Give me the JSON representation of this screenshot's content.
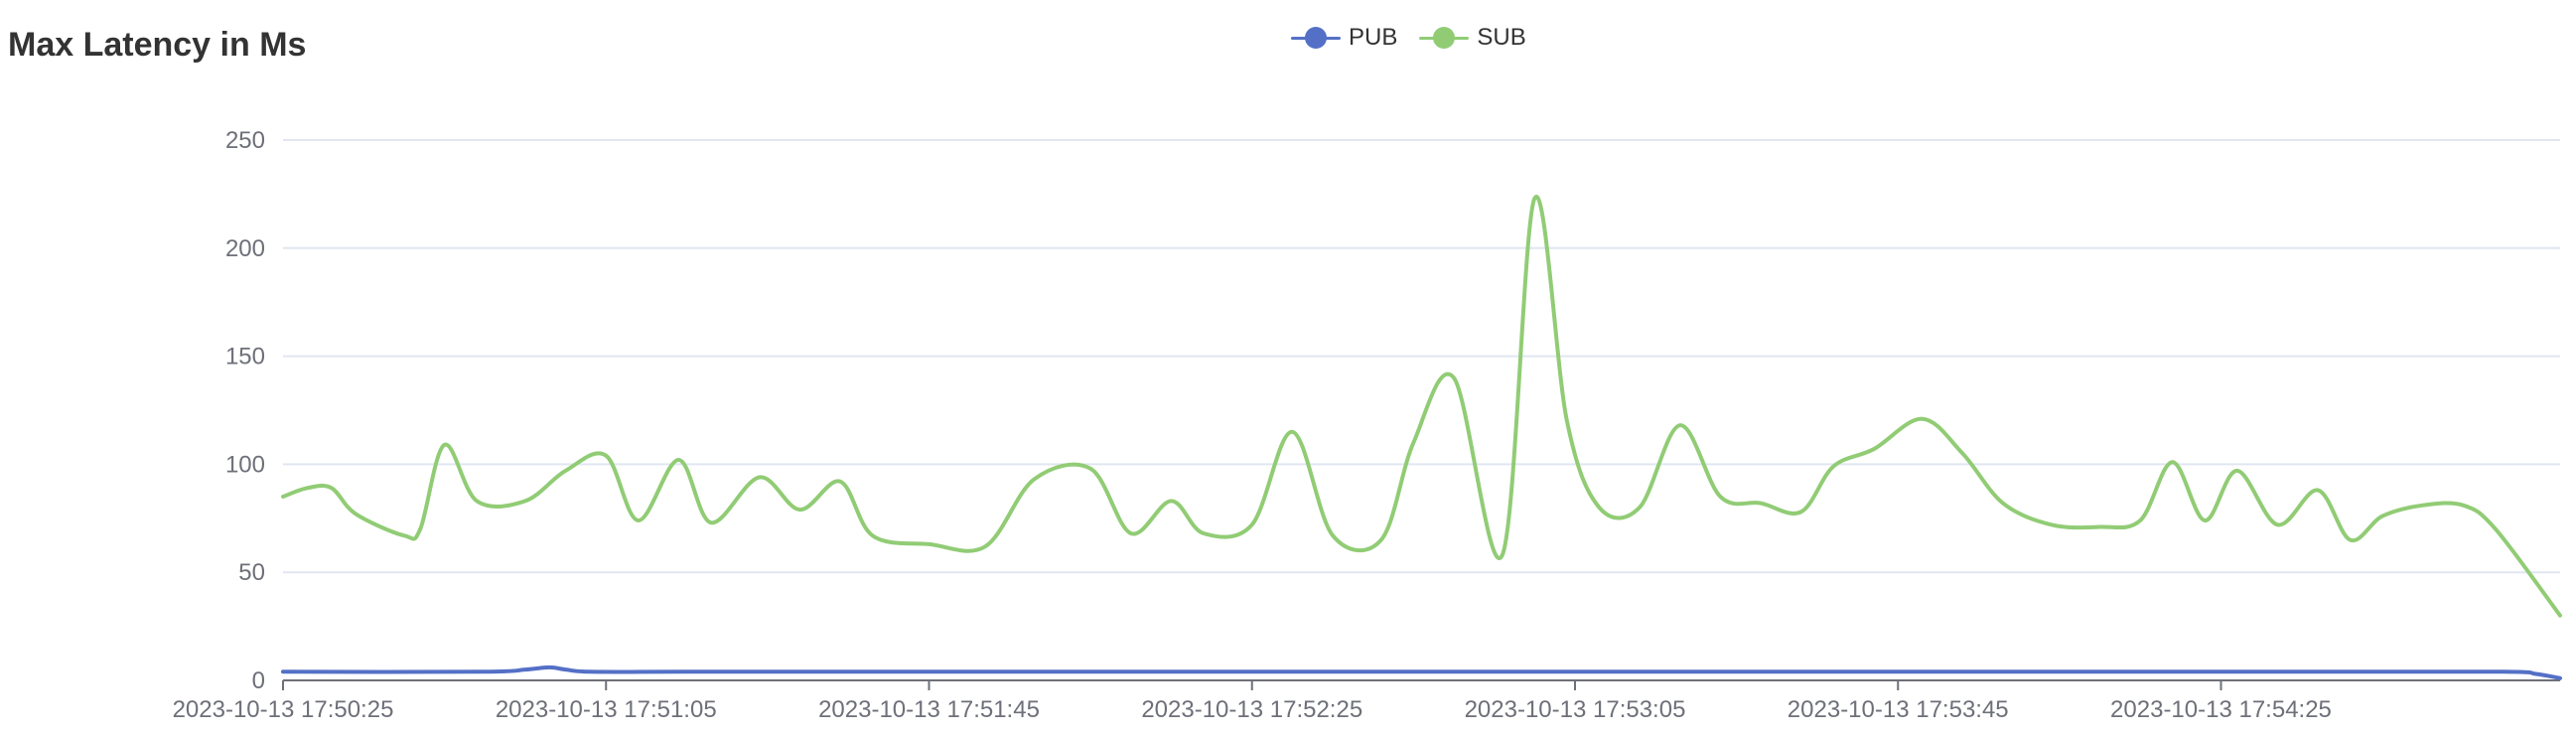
{
  "title": "Max Latency in Ms",
  "colors": {
    "pub": "#5470c6",
    "sub": "#91cc75",
    "grid": "#e0e6f1",
    "axis": "#6e7079",
    "label": "#6e7079"
  },
  "chart_data": {
    "type": "line",
    "title": "Max Latency in Ms",
    "legend_position": "top-center",
    "grid": true,
    "smooth": true,
    "ylim": [
      0,
      250
    ],
    "yticks": [
      0,
      50,
      100,
      150,
      200,
      250
    ],
    "xlim": [
      "2023-10-13 17:50:25",
      "2023-10-13 17:55:07"
    ],
    "xticks": [
      "2023-10-13 17:50:25",
      "2023-10-13 17:51:05",
      "2023-10-13 17:51:45",
      "2023-10-13 17:52:25",
      "2023-10-13 17:53:05",
      "2023-10-13 17:53:45",
      "2023-10-13 17:54:25"
    ],
    "series": [
      {
        "name": "PUB",
        "color": "#5470c6",
        "points": [
          [
            "2023-10-13 17:50:25",
            4
          ],
          [
            "2023-10-13 17:50:50",
            4
          ],
          [
            "2023-10-13 17:50:55",
            5
          ],
          [
            "2023-10-13 17:50:58",
            6
          ],
          [
            "2023-10-13 17:51:00",
            5
          ],
          [
            "2023-10-13 17:51:03",
            4
          ],
          [
            "2023-10-13 17:51:15",
            4
          ],
          [
            "2023-10-13 17:51:35",
            4
          ],
          [
            "2023-10-13 17:52:05",
            4
          ],
          [
            "2023-10-13 17:52:35",
            4
          ],
          [
            "2023-10-13 17:53:05",
            4
          ],
          [
            "2023-10-13 17:53:35",
            4
          ],
          [
            "2023-10-13 17:54:05",
            4
          ],
          [
            "2023-10-13 17:54:35",
            4
          ],
          [
            "2023-10-13 17:55:00",
            4
          ],
          [
            "2023-10-13 17:55:04",
            3
          ],
          [
            "2023-10-13 17:55:07",
            1
          ]
        ]
      },
      {
        "name": "SUB",
        "color": "#91cc75",
        "points": [
          [
            "2023-10-13 17:50:25",
            85
          ],
          [
            "2023-10-13 17:50:28",
            89
          ],
          [
            "2023-10-13 17:50:31",
            89
          ],
          [
            "2023-10-13 17:50:34",
            77
          ],
          [
            "2023-10-13 17:50:40",
            67
          ],
          [
            "2023-10-13 17:50:42",
            70
          ],
          [
            "2023-10-13 17:50:45",
            109
          ],
          [
            "2023-10-13 17:50:49",
            83
          ],
          [
            "2023-10-13 17:50:55",
            83
          ],
          [
            "2023-10-13 17:51:00",
            97
          ],
          [
            "2023-10-13 17:51:05",
            104
          ],
          [
            "2023-10-13 17:51:09",
            74
          ],
          [
            "2023-10-13 17:51:14",
            102
          ],
          [
            "2023-10-13 17:51:18",
            73
          ],
          [
            "2023-10-13 17:51:24",
            94
          ],
          [
            "2023-10-13 17:51:29",
            79
          ],
          [
            "2023-10-13 17:51:34",
            92
          ],
          [
            "2023-10-13 17:51:38",
            67
          ],
          [
            "2023-10-13 17:51:45",
            63
          ],
          [
            "2023-10-13 17:51:52",
            62
          ],
          [
            "2023-10-13 17:51:58",
            93
          ],
          [
            "2023-10-13 17:52:05",
            98
          ],
          [
            "2023-10-13 17:52:10",
            68
          ],
          [
            "2023-10-13 17:52:15",
            83
          ],
          [
            "2023-10-13 17:52:19",
            68
          ],
          [
            "2023-10-13 17:52:25",
            72
          ],
          [
            "2023-10-13 17:52:30",
            115
          ],
          [
            "2023-10-13 17:52:35",
            67
          ],
          [
            "2023-10-13 17:52:41",
            65
          ],
          [
            "2023-10-13 17:52:45",
            110
          ],
          [
            "2023-10-13 17:52:50",
            140
          ],
          [
            "2023-10-13 17:52:56",
            58
          ],
          [
            "2023-10-13 17:53:00",
            223
          ],
          [
            "2023-10-13 17:53:04",
            120
          ],
          [
            "2023-10-13 17:53:08",
            80
          ],
          [
            "2023-10-13 17:53:13",
            80
          ],
          [
            "2023-10-13 17:53:18",
            118
          ],
          [
            "2023-10-13 17:53:23",
            85
          ],
          [
            "2023-10-13 17:53:28",
            82
          ],
          [
            "2023-10-13 17:53:33",
            78
          ],
          [
            "2023-10-13 17:53:37",
            99
          ],
          [
            "2023-10-13 17:53:42",
            107
          ],
          [
            "2023-10-13 17:53:48",
            121
          ],
          [
            "2023-10-13 17:53:53",
            105
          ],
          [
            "2023-10-13 17:53:58",
            82
          ],
          [
            "2023-10-13 17:54:04",
            72
          ],
          [
            "2023-10-13 17:54:10",
            71
          ],
          [
            "2023-10-13 17:54:15",
            74
          ],
          [
            "2023-10-13 17:54:19",
            101
          ],
          [
            "2023-10-13 17:54:23",
            74
          ],
          [
            "2023-10-13 17:54:27",
            97
          ],
          [
            "2023-10-13 17:54:32",
            72
          ],
          [
            "2023-10-13 17:54:37",
            88
          ],
          [
            "2023-10-13 17:54:41",
            65
          ],
          [
            "2023-10-13 17:54:45",
            76
          ],
          [
            "2023-10-13 17:54:50",
            81
          ],
          [
            "2023-10-13 17:54:55",
            81
          ],
          [
            "2023-10-13 17:54:59",
            70
          ],
          [
            "2023-10-13 17:55:07",
            30
          ]
        ]
      }
    ]
  }
}
